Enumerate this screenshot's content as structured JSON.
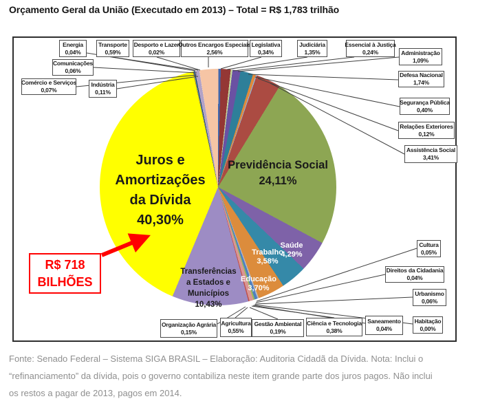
{
  "title": "Orçamento Geral da União (Executado em 2013) – Total = R$ 1,783 trilhão",
  "callout": {
    "lines": [
      "R$ 718",
      "BILHÕES"
    ]
  },
  "footer": {
    "lines": [
      "Fonte: Senado Federal – Sistema SIGA BRASIL – Elaboração: Auditoria Cidadã da Dívida. Nota: Inclui o",
      "“refinanciamento” da dívida, pois o governo contabiliza neste item grande parte dos juros pagos. Não inclui",
      "os restos a pagar de 2013, pagos em 2014."
    ]
  },
  "internal_labels": {
    "juros": {
      "lines": [
        "Juros e",
        "Amortizações",
        "da Dívida",
        "40,30%"
      ]
    },
    "previdencia": {
      "lines": [
        "Previdência Social",
        "24,11%"
      ]
    },
    "transferencias": {
      "lines": [
        "Transferências",
        "a Estados e",
        "Municípios",
        "10,43%"
      ]
    },
    "saude": {
      "lines": [
        "Saúde",
        "4,29%"
      ]
    },
    "trabalho": {
      "lines": [
        "Trabalho",
        "3,58%"
      ]
    },
    "educacao": {
      "lines": [
        "Educação",
        "3,70%"
      ]
    }
  },
  "chart_data": {
    "type": "pie",
    "title": "Orçamento Geral da União (Executado em 2013)",
    "total_label": "R$ 1,783 trilhão",
    "highlight_value": "R$ 718 BILHÕES",
    "start_angle_deg": -12.3,
    "legend_position": "callout-boxes",
    "slices": [
      {
        "name": "Energia",
        "pct": 0.04,
        "label": "0,04%",
        "color": "#76933c"
      },
      {
        "name": "Comunicações",
        "pct": 0.06,
        "label": "0,06%",
        "color": "#e36c0a"
      },
      {
        "name": "Comércio e Serviços",
        "pct": 0.07,
        "label": "0,07%",
        "color": "#31b6e7"
      },
      {
        "name": "Indústria",
        "pct": 0.11,
        "label": "0,11%",
        "color": "#17375e"
      },
      {
        "name": "Transporte",
        "pct": 0.59,
        "label": "0,59%",
        "color": "#b2a2c7"
      },
      {
        "name": "Desporto e Lazer",
        "pct": 0.02,
        "label": "0,02%",
        "color": "#dce6f2"
      },
      {
        "name": "Outros Encargos Especiais",
        "pct": 2.56,
        "label": "2,56%",
        "color": "#f6c5a5"
      },
      {
        "name": "Legislativa",
        "pct": 0.34,
        "label": "0,34%",
        "color": "#4166ac"
      },
      {
        "name": "Judiciária",
        "pct": 1.35,
        "label": "1,35%",
        "color": "#943735"
      },
      {
        "name": "Essencial à Justiça",
        "pct": 0.24,
        "label": "0,24%",
        "color": "#c3d69b"
      },
      {
        "name": "Administração",
        "pct": 1.09,
        "label": "1,09%",
        "color": "#6a51a3"
      },
      {
        "name": "Defesa Nacional",
        "pct": 1.74,
        "label": "1,74%",
        "color": "#2e7f99"
      },
      {
        "name": "Segurança Pública",
        "pct": 0.4,
        "label": "0,40%",
        "color": "#e08a3a"
      },
      {
        "name": "Relações Exteriores",
        "pct": 0.12,
        "label": "0,12%",
        "color": "#8eb4e3"
      },
      {
        "name": "Assistência Social",
        "pct": 3.41,
        "label": "3,41%",
        "color": "#ab4b42"
      },
      {
        "name": "Previdência Social",
        "pct": 24.11,
        "label": "24,11%",
        "color": "#8da653"
      },
      {
        "name": "Saúde",
        "pct": 4.29,
        "label": "4,29%",
        "color": "#7e62a8"
      },
      {
        "name": "Trabalho",
        "pct": 3.58,
        "label": "3,58%",
        "color": "#3589a8"
      },
      {
        "name": "Educação",
        "pct": 3.7,
        "label": "3,70%",
        "color": "#dc8c3c"
      },
      {
        "name": "Cultura",
        "pct": 0.05,
        "label": "0,05%",
        "color": "#92cddc"
      },
      {
        "name": "Direitos da Cidadania",
        "pct": 0.04,
        "label": "0,04%",
        "color": "#fac090"
      },
      {
        "name": "Urbanismo",
        "pct": 0.06,
        "label": "0,06%",
        "color": "#b3a2c7"
      },
      {
        "name": "Habitação",
        "pct": 0.0,
        "label": "0,00%",
        "color": "#ffc000"
      },
      {
        "name": "Saneamento",
        "pct": 0.04,
        "label": "0,04%",
        "color": "#8db4e2"
      },
      {
        "name": "Ciência e Tecnologia",
        "pct": 0.38,
        "label": "0,38%",
        "color": "#4f81bd"
      },
      {
        "name": "Gestão Ambiental",
        "pct": 0.19,
        "label": "0,19%",
        "color": "#9bbb59"
      },
      {
        "name": "Agricultura",
        "pct": 0.55,
        "label": "0,55%",
        "color": "#d99694"
      },
      {
        "name": "Organização Agrária",
        "pct": 0.15,
        "label": "0,15%",
        "color": "#c0504d"
      },
      {
        "name": "Transferências a Estados e Municípios",
        "pct": 10.43,
        "label": "10,43%",
        "color": "#9d8cc4"
      },
      {
        "name": "Juros e Amortizações da Dívida",
        "pct": 40.3,
        "label": "40,30%",
        "color": "#ffff00"
      }
    ]
  }
}
